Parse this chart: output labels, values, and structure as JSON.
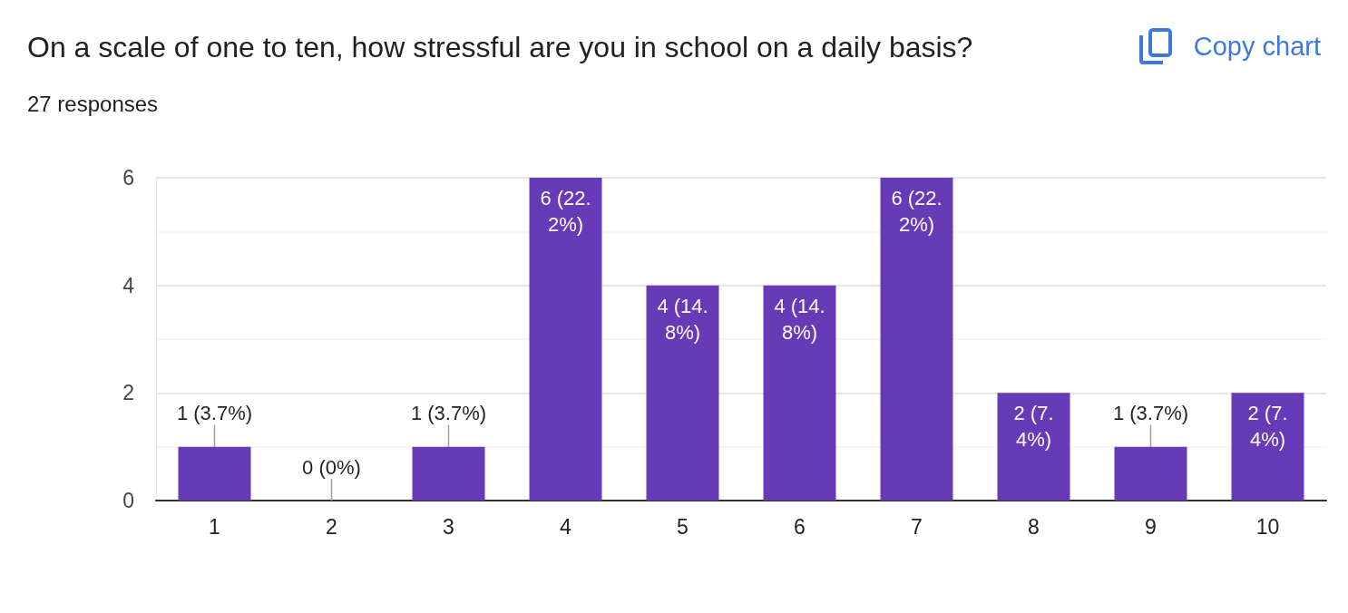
{
  "chart_data": {
    "type": "bar",
    "title": "On a scale of one to ten, how stressful are you in school on a daily basis?",
    "subtitle": "27 responses",
    "annotations": [
      "Copy chart"
    ],
    "categories": [
      "1",
      "2",
      "3",
      "4",
      "5",
      "6",
      "7",
      "8",
      "9",
      "10"
    ],
    "values": [
      1,
      0,
      1,
      6,
      4,
      4,
      6,
      2,
      1,
      2
    ],
    "value_labels": [
      "1 (3.7%)",
      "0 (0%)",
      "1 (3.7%)",
      "6 (22.2%)",
      "4 (14.8%)",
      "4 (14.8%)",
      "6 (22.2%)",
      "2 (7.4%)",
      "1 (3.7%)",
      "2 (7.4%)"
    ],
    "color": "#673ab7",
    "ylim": [
      0,
      6
    ],
    "yticks": [
      0,
      2,
      4,
      6
    ],
    "grid": "y"
  }
}
